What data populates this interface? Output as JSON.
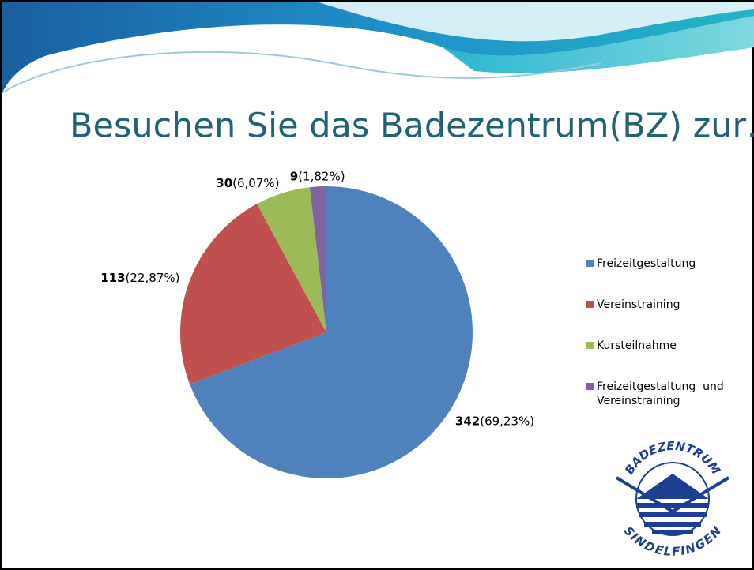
{
  "chart_data": {
    "type": "pie",
    "title": "Besuchen Sie das Badezentrum(BZ) zur…",
    "categories": [
      "Freizeitgestaltung",
      "Vereinstraining",
      "Kursteilnahme",
      "Freizeitgestaltung  und Vereinstraining"
    ],
    "values": [
      342,
      113,
      30,
      9
    ],
    "percent_labels": [
      "(69,23%)",
      "(22,87%)",
      "(6,07%)",
      "(1,82%)"
    ],
    "colors": [
      "#4f81bd",
      "#c0504d",
      "#9bbb59",
      "#8064a2"
    ],
    "legend": "right"
  },
  "logo": {
    "top": "BADEZENTRUM",
    "bottom": "SINDELFINGEN"
  }
}
